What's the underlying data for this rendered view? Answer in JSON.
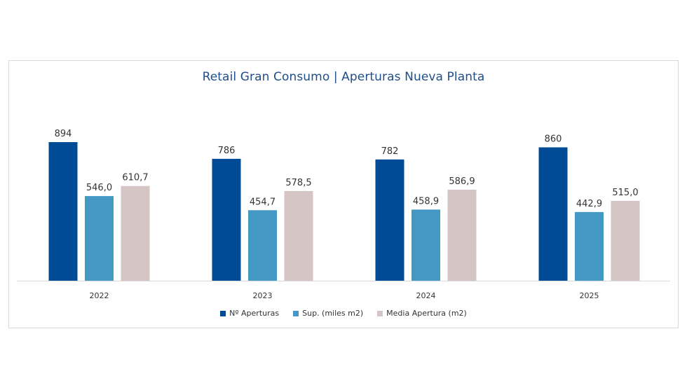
{
  "chart_data": {
    "type": "bar",
    "title": "Retail Gran Consumo | Aperturas Nueva Planta",
    "categories": [
      "2022",
      "2023",
      "2024",
      "2025"
    ],
    "series": [
      {
        "name": "Nº Aperturas",
        "values": [
          894,
          786,
          782,
          860
        ],
        "labels": [
          "894",
          "786",
          "782",
          "860"
        ],
        "color": "#004b96"
      },
      {
        "name": "Sup. (miles m2)",
        "values": [
          546.0,
          454.7,
          458.9,
          442.9
        ],
        "labels": [
          "546,0",
          "454,7",
          "458,9",
          "442,9"
        ],
        "color": "#4499c4"
      },
      {
        "name": "Media Apertura (m2)",
        "values": [
          610.7,
          578.5,
          586.9,
          515.0
        ],
        "labels": [
          "610,7",
          "578,5",
          "586,9",
          "515,0"
        ],
        "color": "#d5c5c5"
      }
    ],
    "ylim": [
      0,
      1000
    ],
    "grid": false,
    "legend_position": "bottom-center"
  }
}
